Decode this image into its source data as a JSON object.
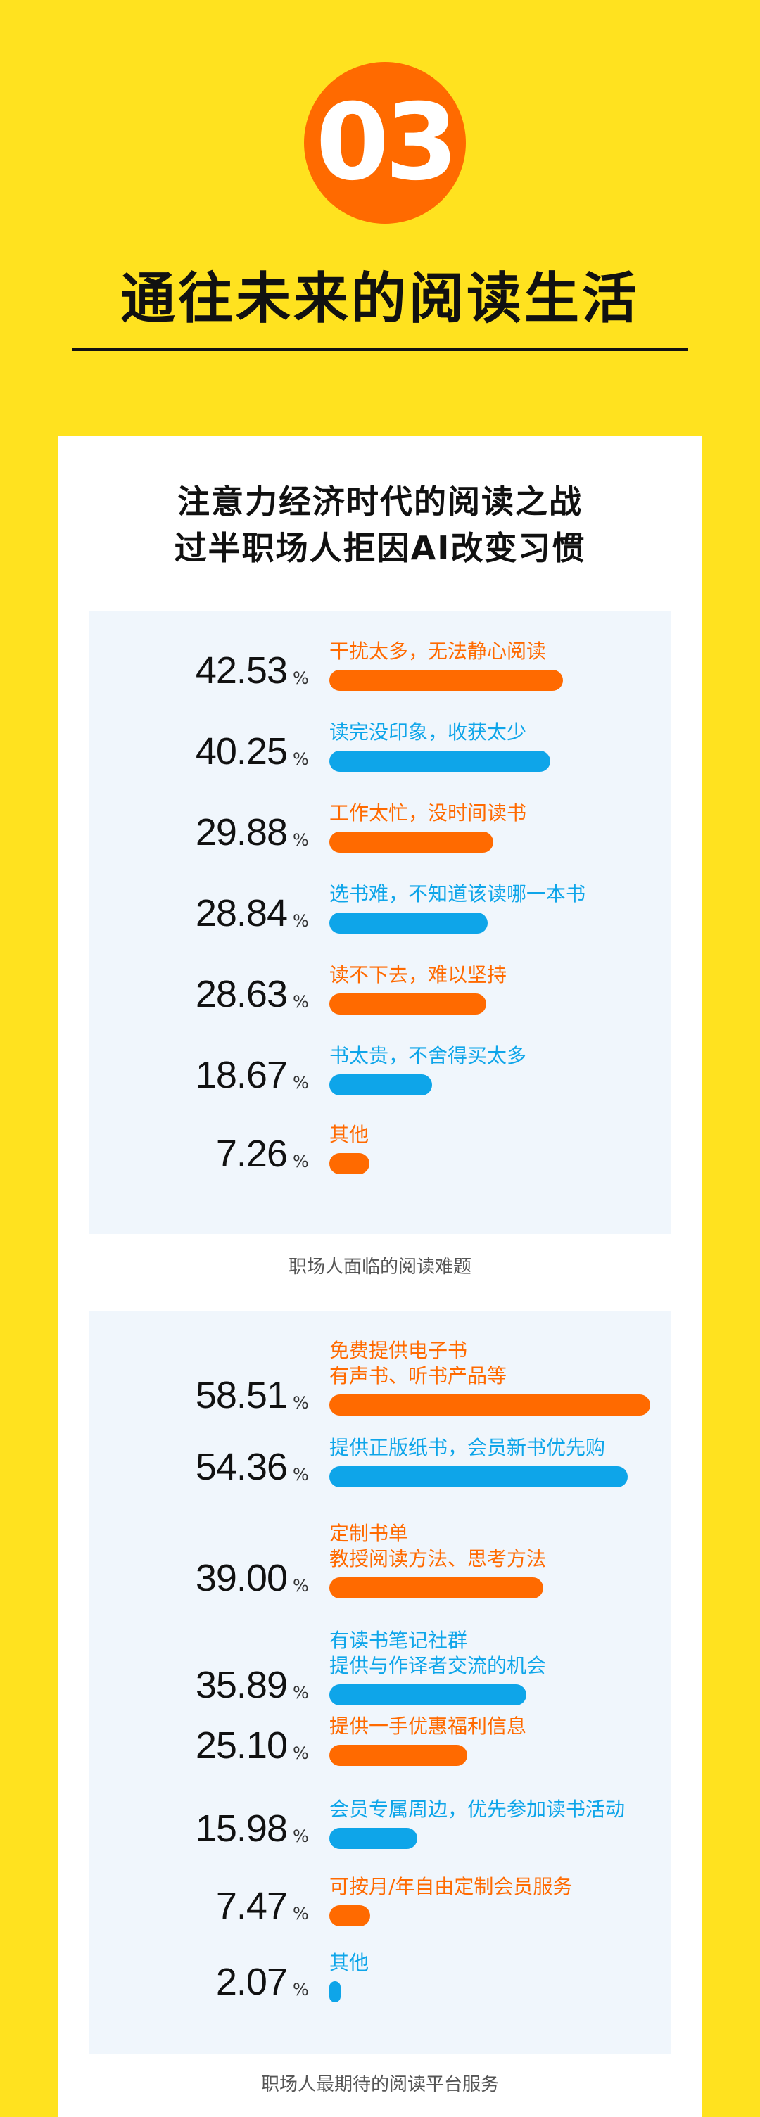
{
  "section": {
    "number": "03",
    "title": "通往未来的阅读生活"
  },
  "card": {
    "title": "注意力经济时代的阅读之战\n过半职场人拒因AI改变习惯"
  },
  "colors": {
    "orange": "#FF6A00",
    "blue": "#0EA5E9",
    "background": "#FFE21F"
  },
  "chart_data": [
    {
      "type": "bar",
      "title": "职场人面临的阅读难题",
      "unit": "%",
      "categories": [
        "干扰太多，无法静心阅读",
        "读完没印象，收获太少",
        "工作太忙，没时间读书",
        "选书难，不知道该读哪一本书",
        "读不下去，难以坚持",
        "书太贵，不舍得买太多",
        "其他"
      ],
      "values": [
        42.53,
        40.25,
        29.88,
        28.84,
        28.63,
        18.67,
        7.26
      ],
      "colors": [
        "orange",
        "blue",
        "orange",
        "blue",
        "orange",
        "blue",
        "orange"
      ]
    },
    {
      "type": "bar",
      "title": "职场人最期待的阅读平台服务",
      "unit": "%",
      "categories": [
        "免费提供电子书\n有声书、听书产品等",
        "提供正版纸书，会员新书优先购",
        "定制书单\n教授阅读方法、思考方法",
        "有读书笔记社群\n提供与作译者交流的机会",
        "提供一手优惠福利信息",
        "会员专属周边，优先参加读书活动",
        "可按月/年自由定制会员服务",
        "其他"
      ],
      "values": [
        58.51,
        54.36,
        39.0,
        35.89,
        25.1,
        15.98,
        7.47,
        2.07
      ],
      "colors": [
        "orange",
        "blue",
        "orange",
        "blue",
        "orange",
        "blue",
        "orange",
        "blue"
      ]
    }
  ]
}
